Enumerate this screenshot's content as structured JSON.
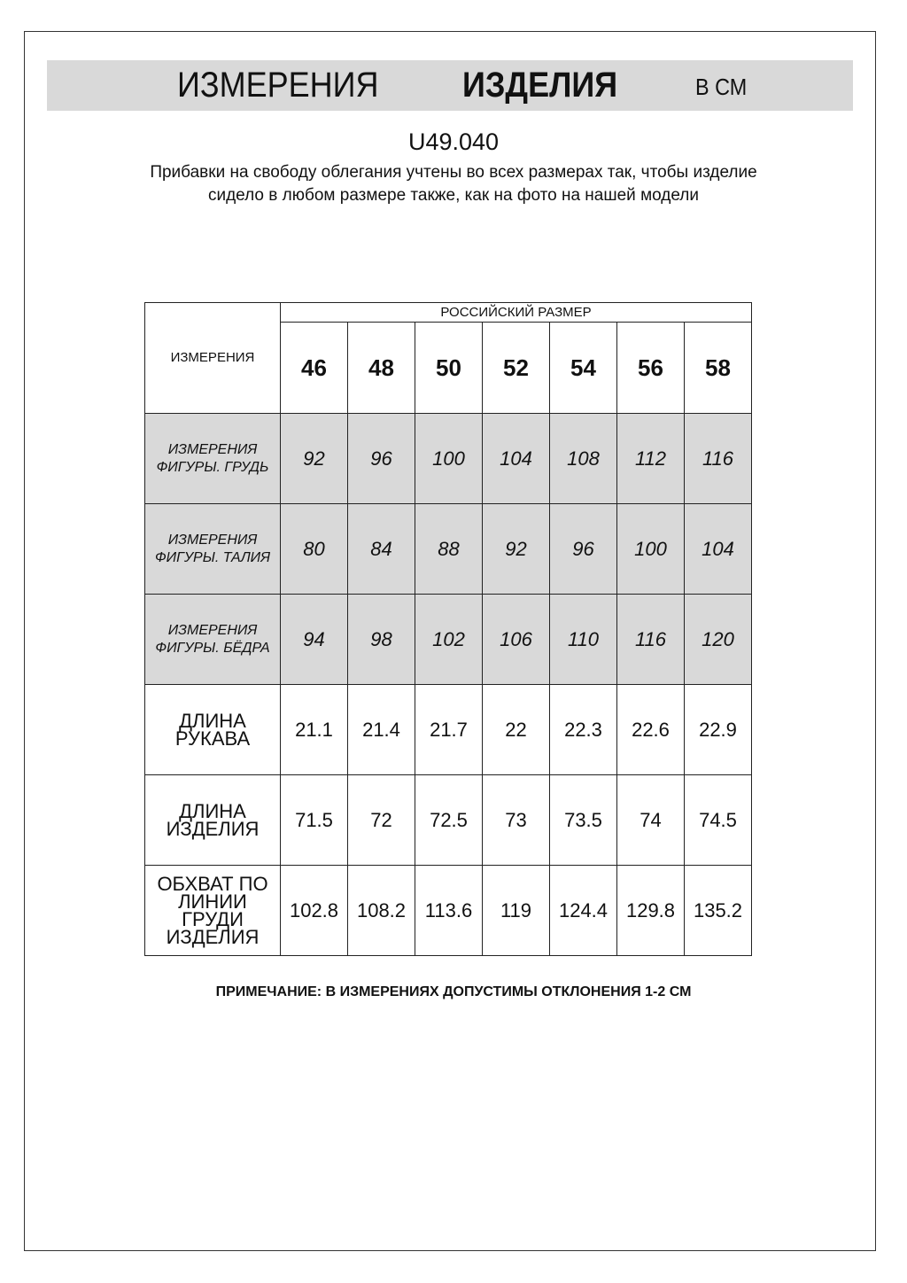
{
  "header": {
    "title_regular": "ИЗМЕРЕНИЯ",
    "title_bold": "ИЗДЕЛИЯ",
    "unit": "В СМ"
  },
  "product_code": "U49.040",
  "description": "Прибавки на свободу облегания учтены во всех размерах так, чтобы изделие сидело в любом размере также, как на фото на нашей модели",
  "table": {
    "corner_label": "ИЗМЕРЕНИЯ",
    "group_label": "РОССИЙСКИЙ РАЗМЕР",
    "sizes": [
      "46",
      "48",
      "50",
      "52",
      "54",
      "56",
      "58"
    ],
    "rows": [
      {
        "label": "ИЗМЕРЕНИЯ ФИГУРЫ. ГРУДЬ",
        "shaded": true,
        "values": [
          "92",
          "96",
          "100",
          "104",
          "108",
          "112",
          "116"
        ]
      },
      {
        "label": "ИЗМЕРЕНИЯ ФИГУРЫ. ТАЛИЯ",
        "shaded": true,
        "values": [
          "80",
          "84",
          "88",
          "92",
          "96",
          "100",
          "104"
        ]
      },
      {
        "label": "ИЗМЕРЕНИЯ ФИГУРЫ. БЁДРА",
        "shaded": true,
        "values": [
          "94",
          "98",
          "102",
          "106",
          "110",
          "116",
          "120"
        ]
      },
      {
        "label": "ДЛИНА РУКАВА",
        "shaded": false,
        "values": [
          "21.1",
          "21.4",
          "21.7",
          "22",
          "22.3",
          "22.6",
          "22.9"
        ]
      },
      {
        "label": "ДЛИНА ИЗДЕЛИЯ",
        "shaded": false,
        "values": [
          "71.5",
          "72",
          "72.5",
          "73",
          "73.5",
          "74",
          "74.5"
        ]
      },
      {
        "label": "ОБХВАТ ПО ЛИНИИ ГРУДИ ИЗДЕЛИЯ",
        "shaded": false,
        "values": [
          "102.8",
          "108.2",
          "113.6",
          "119",
          "124.4",
          "129.8",
          "135.2"
        ]
      }
    ]
  },
  "note": "ПРИМЕЧАНИЕ: В ИЗМЕРЕНИЯХ ДОПУСТИМЫ ОТКЛОНЕНИЯ 1-2 СМ",
  "colors": {
    "shade": "#d9d9d9",
    "border": "#222222"
  }
}
